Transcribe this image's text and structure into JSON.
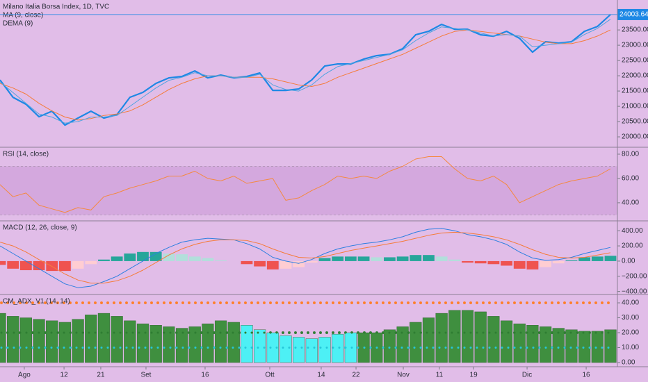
{
  "chart_data": [
    {
      "type": "line",
      "title": "Milano Italia Borsa Index, 1D, TVC",
      "ylim": [
        19660,
        24480
      ],
      "yticks": [
        {
          "value": 20000,
          "label": "20000.00"
        },
        {
          "value": 20500,
          "label": "20500.00"
        },
        {
          "value": 21000,
          "label": "21000.00"
        },
        {
          "value": 21500,
          "label": "21500.00"
        },
        {
          "value": 22000,
          "label": "22000.00"
        },
        {
          "value": 22500,
          "label": "22500.00"
        },
        {
          "value": 23000,
          "label": "23000.00"
        },
        {
          "value": 23500,
          "label": "23500.00"
        }
      ],
      "series": [
        {
          "color": "#1e88e5",
          "width": 2.2,
          "values": [
            21864,
            21295,
            21068,
            20659,
            20841,
            20386,
            20614,
            20841,
            20614,
            20727,
            21295,
            21455,
            21750,
            21932,
            21977,
            22159,
            21932,
            22023,
            21932,
            21977,
            22091,
            21523,
            21523,
            21568,
            21864,
            22318,
            22386,
            22386,
            22545,
            22659,
            22705,
            22886,
            23341,
            23455,
            23682,
            23523,
            23523,
            23341,
            23295,
            23455,
            23227,
            22773,
            23114,
            23068,
            23114,
            23455,
            23614,
            24003.64
          ]
        },
        {
          "name": "MA (9, close)",
          "color": "#f57c3a",
          "width": 1,
          "values": [
            21750,
            21600,
            21400,
            21100,
            20850,
            20650,
            20550,
            20600,
            20700,
            20750,
            20850,
            21050,
            21300,
            21550,
            21750,
            21900,
            22000,
            22000,
            21950,
            21950,
            21950,
            21900,
            21800,
            21700,
            21650,
            21750,
            21950,
            22100,
            22250,
            22400,
            22550,
            22700,
            22900,
            23100,
            23300,
            23450,
            23500,
            23450,
            23400,
            23350,
            23300,
            23200,
            23100,
            23050,
            23050,
            23150,
            23300,
            23500
          ]
        },
        {
          "name": "DEMA (9)",
          "color": "#4fa3e0",
          "width": 1,
          "values": [
            21800,
            21450,
            21100,
            20750,
            20650,
            20450,
            20500,
            20650,
            20650,
            20700,
            21000,
            21300,
            21600,
            21850,
            21950,
            22100,
            22000,
            22000,
            21950,
            21950,
            22050,
            21700,
            21550,
            21500,
            21700,
            22050,
            22300,
            22400,
            22500,
            22600,
            22700,
            22850,
            23150,
            23400,
            23600,
            23550,
            23500,
            23400,
            23300,
            23350,
            23300,
            22950,
            23000,
            23050,
            23100,
            23350,
            23550,
            23850
          ]
        }
      ]
    },
    {
      "type": "line",
      "title": "RSI (14, close)",
      "ylim": [
        25.1,
        85.7
      ],
      "yticks": [
        {
          "value": 80,
          "label": "80.00"
        },
        {
          "value": 60,
          "label": "60.00"
        },
        {
          "value": 40,
          "label": "40.00"
        }
      ],
      "band": [
        30,
        70
      ],
      "band_color": "#d4a8de",
      "series": [
        {
          "color": "#f5893f",
          "width": 1,
          "values": [
            55,
            45,
            48,
            38,
            35,
            32,
            36,
            34,
            45,
            48,
            52,
            55,
            58,
            62,
            62,
            66,
            60,
            58,
            62,
            56,
            58,
            60,
            42,
            44,
            50,
            55,
            62,
            60,
            62,
            60,
            66,
            70,
            76,
            78,
            78,
            68,
            60,
            58,
            62,
            55,
            40,
            45,
            50,
            55,
            58,
            60,
            62,
            68
          ]
        }
      ]
    },
    {
      "type": "macd",
      "title": "MACD (12, 26, close, 9)",
      "ylim": [
        -440,
        530
      ],
      "yticks": [
        {
          "value": 400,
          "label": "400.00"
        },
        {
          "value": 200,
          "label": "200.00"
        },
        {
          "value": 0,
          "label": "0.00"
        },
        {
          "value": -200,
          "label": "−200.00"
        },
        {
          "value": -400,
          "label": "−400.00"
        }
      ],
      "histogram": {
        "colors": [
          "#26a69a",
          "#b2dfdb",
          "#ffcdd2",
          "#ef5350"
        ],
        "values": [
          -50,
          -100,
          -120,
          -120,
          -130,
          -130,
          -100,
          -40,
          20,
          60,
          100,
          120,
          120,
          100,
          90,
          60,
          40,
          10,
          0,
          -40,
          -70,
          -110,
          -100,
          -80,
          -20,
          40,
          60,
          60,
          60,
          50,
          50,
          60,
          80,
          80,
          60,
          20,
          -20,
          -30,
          -40,
          -60,
          -100,
          -110,
          -80,
          -30,
          10,
          50,
          60,
          70
        ]
      },
      "series": [
        {
          "color": "#2d7fe0",
          "width": 1,
          "values": [
            200,
            100,
            0,
            -100,
            -200,
            -300,
            -350,
            -330,
            -270,
            -200,
            -100,
            0,
            100,
            180,
            250,
            280,
            300,
            290,
            280,
            230,
            160,
            50,
            0,
            -30,
            20,
            100,
            160,
            200,
            230,
            250,
            280,
            320,
            380,
            420,
            430,
            400,
            350,
            320,
            280,
            220,
            120,
            40,
            10,
            20,
            50,
            100,
            140,
            180
          ]
        },
        {
          "color": "#f57c3a",
          "width": 1,
          "values": [
            250,
            200,
            120,
            20,
            -70,
            -170,
            -250,
            -290,
            -290,
            -260,
            -200,
            -120,
            -20,
            80,
            160,
            220,
            260,
            280,
            280,
            270,
            230,
            160,
            100,
            50,
            40,
            60,
            100,
            140,
            170,
            200,
            230,
            260,
            300,
            340,
            370,
            380,
            370,
            350,
            320,
            280,
            220,
            150,
            90,
            50,
            40,
            50,
            80,
            110
          ]
        }
      ]
    },
    {
      "type": "bar",
      "title": "CM_ADX_V1 (14, 14)",
      "ylim": [
        -2.8,
        45.6
      ],
      "yticks": [
        {
          "value": 40,
          "label": "40.00"
        },
        {
          "value": 30,
          "label": "30.00"
        },
        {
          "value": 20,
          "label": "20.00"
        },
        {
          "value": 10,
          "label": "10.00"
        },
        {
          "value": 0,
          "label": "0.00"
        }
      ],
      "xlim": [
        0,
        47
      ],
      "xticks": [
        {
          "value": 1.87,
          "label": "Ago"
        },
        {
          "value": 4.93,
          "label": "12"
        },
        {
          "value": 7.76,
          "label": "21"
        },
        {
          "value": 11.24,
          "label": "Set"
        },
        {
          "value": 15.79,
          "label": "16"
        },
        {
          "value": 20.77,
          "label": "Ott"
        },
        {
          "value": 24.73,
          "label": "14"
        },
        {
          "value": 27.41,
          "label": "22"
        },
        {
          "value": 31.05,
          "label": "Nov"
        },
        {
          "value": 33.83,
          "label": "11"
        },
        {
          "value": 36.46,
          "label": "19"
        },
        {
          "value": 40.58,
          "label": "Dic"
        },
        {
          "value": 45.13,
          "label": "16"
        }
      ],
      "reference_lines": [
        {
          "value": 40,
          "color": "#ff7f27"
        },
        {
          "value": 20,
          "color": "#2e7d32"
        },
        {
          "value": 10,
          "color": "#26c6da"
        }
      ],
      "values": [
        33,
        31,
        30,
        29,
        28,
        27,
        29,
        32,
        33,
        31,
        28,
        26,
        25,
        24,
        23,
        24,
        26,
        28,
        27,
        25,
        22,
        20,
        18,
        17,
        16,
        17,
        19,
        20,
        20,
        20,
        22,
        24,
        27,
        30,
        33,
        35,
        35,
        34,
        31,
        28,
        26,
        25,
        24,
        23,
        22,
        21,
        21,
        22
      ],
      "colors": [
        "#3f8f3f",
        "#3f8f3f",
        "#3f8f3f",
        "#3f8f3f",
        "#3f8f3f",
        "#3f8f3f",
        "#3f8f3f",
        "#3f8f3f",
        "#3f8f3f",
        "#3f8f3f",
        "#3f8f3f",
        "#3f8f3f",
        "#3f8f3f",
        "#3f8f3f",
        "#3f8f3f",
        "#3f8f3f",
        "#3f8f3f",
        "#3f8f3f",
        "#3f8f3f",
        "#4df0f5",
        "#4df0f5",
        "#4df0f5",
        "#4df0f5",
        "#4df0f5",
        "#4df0f5",
        "#4df0f5",
        "#4df0f5",
        "#4df0f5",
        "#3f8f3f",
        "#3f8f3f",
        "#3f8f3f",
        "#3f8f3f",
        "#3f8f3f",
        "#3f8f3f",
        "#3f8f3f",
        "#3f8f3f",
        "#3f8f3f",
        "#3f8f3f",
        "#3f8f3f",
        "#3f8f3f",
        "#3f8f3f",
        "#3f8f3f",
        "#3f8f3f",
        "#3f8f3f",
        "#3f8f3f",
        "#3f8f3f",
        "#3f8f3f",
        "#3f8f3f"
      ]
    }
  ]
}
